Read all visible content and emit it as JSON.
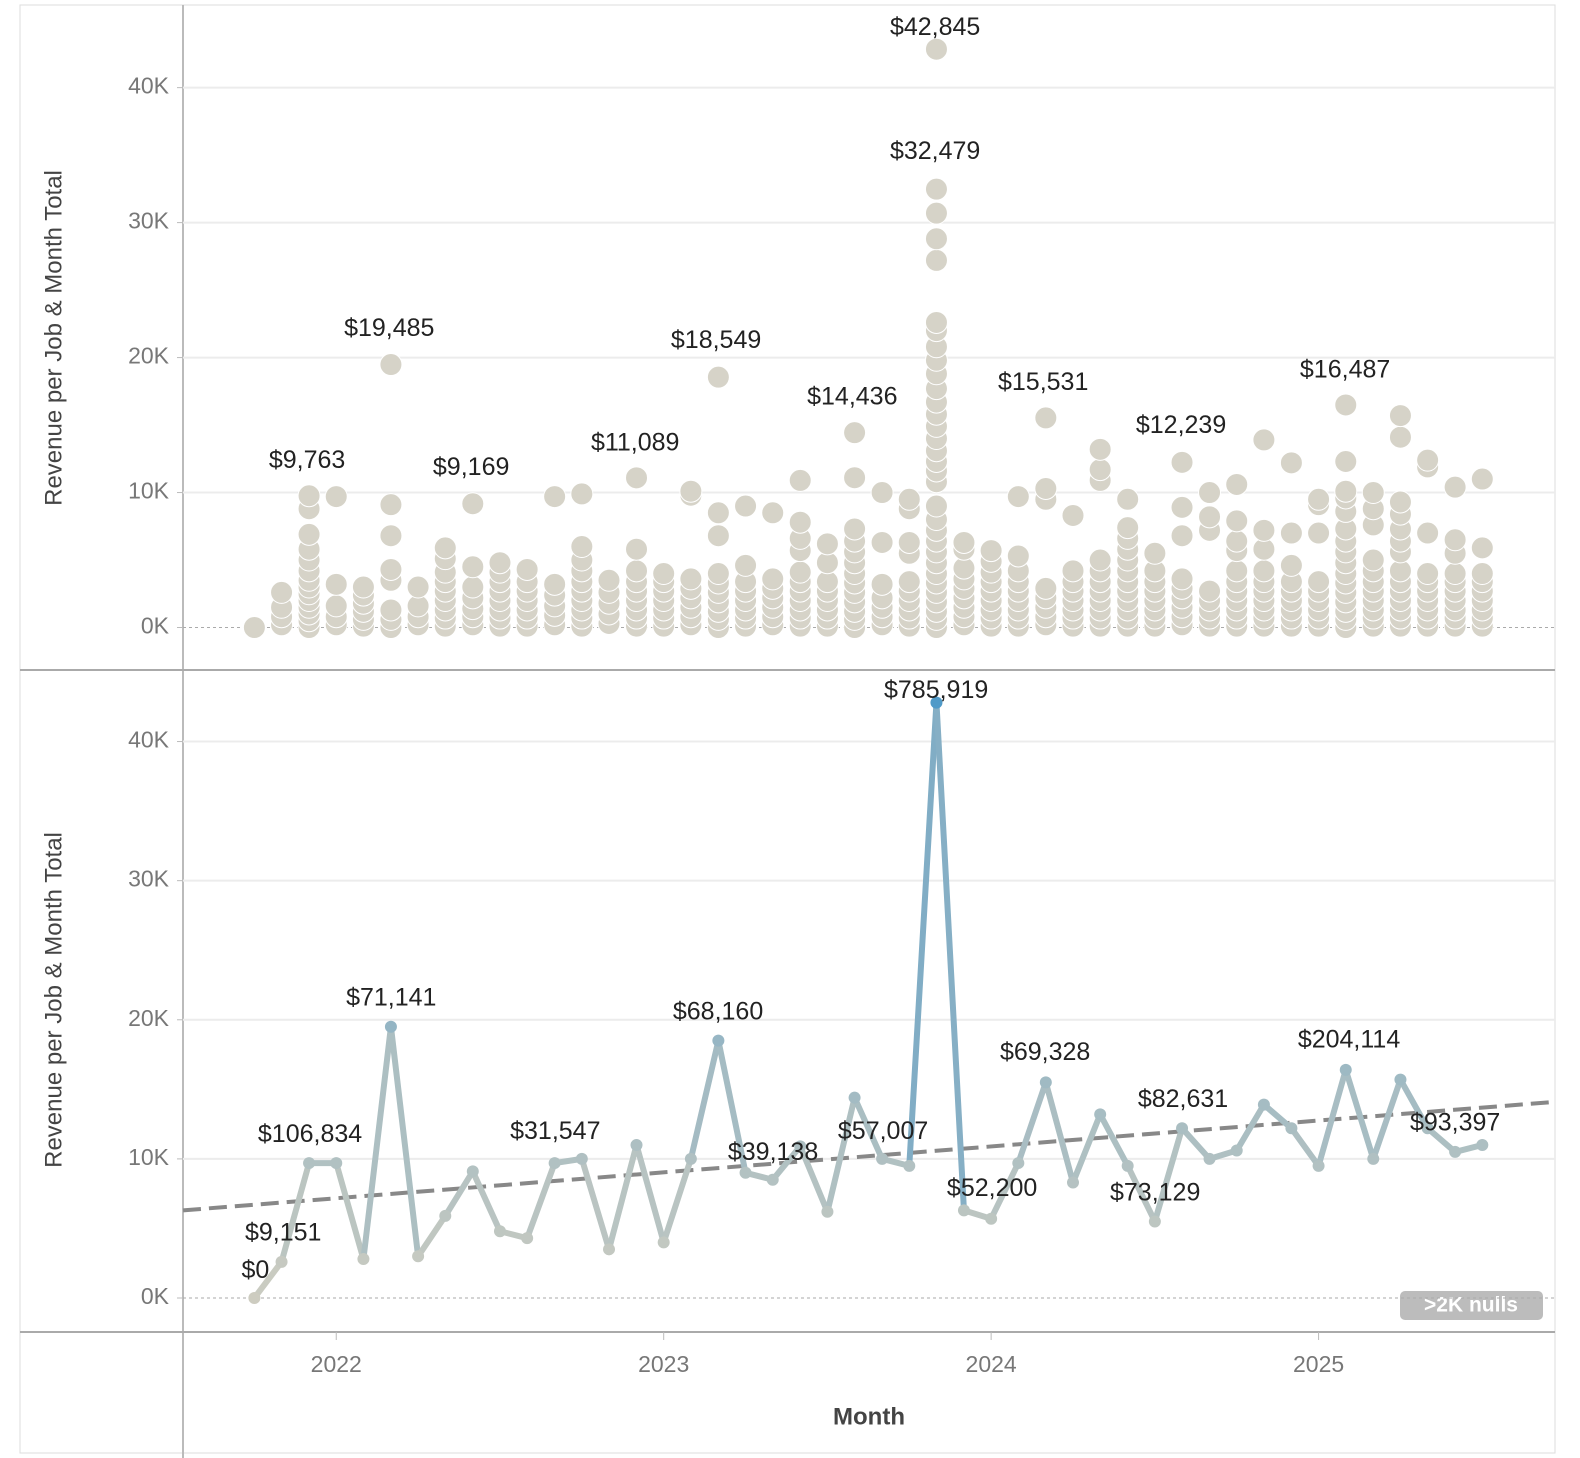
{
  "chart_data": [
    {
      "type": "strip",
      "y_label": "Revenue per Job & Month Total",
      "color": "#d6d3c8",
      "xlim": [
        2021.532,
        2025.722
      ],
      "x": [
        2021.75,
        2021.833,
        2021.917,
        2022,
        2022.083,
        2022.167,
        2022.25,
        2022.333,
        2022.417,
        2022.5,
        2022.583,
        2022.667,
        2022.75,
        2022.833,
        2022.917,
        2023,
        2023.083,
        2023.167,
        2023.25,
        2023.333,
        2023.417,
        2023.5,
        2023.583,
        2023.667,
        2023.75,
        2023.833,
        2023.917,
        2024,
        2024.083,
        2024.167,
        2024.25,
        2024.333,
        2024.417,
        2024.5,
        2024.583,
        2024.667,
        2024.75,
        2024.833,
        2024.917,
        2025,
        2025.083,
        2025.167,
        2025.25,
        2025.333,
        2025.417,
        2025.5
      ],
      "ylim": [
        -3000,
        45900
      ],
      "yticks": [
        {
          "value": 0,
          "label": "0K"
        },
        {
          "value": 10000,
          "label": "10K"
        },
        {
          "value": 20000,
          "label": "20K"
        },
        {
          "value": 30000,
          "label": "30K"
        },
        {
          "value": 40000,
          "label": "40K"
        }
      ],
      "grid": true,
      "series": [
        {
          "values": [
            [
              0
            ],
            [
              200,
              800,
              1500,
              2600
            ],
            [
              0,
              500,
              1000,
              1500,
              2000,
              2500,
              3000,
              3500,
              4200,
              5000,
              5800,
              6900,
              8800,
              9763
            ],
            [
              200,
              800,
              1600,
              3200,
              9700
            ],
            [
              100,
              600,
              1200,
              1800,
              2400,
              3000
            ],
            [
              0,
              600,
              1300,
              3500,
              4300,
              6800,
              9100,
              19485
            ],
            [
              200,
              800,
              1600,
              3000
            ],
            [
              100,
              700,
              1300,
              2000,
              2700,
              3400,
              4100,
              5100,
              5900
            ],
            [
              200,
              800,
              1400,
              2200,
              3000,
              4500,
              9169
            ],
            [
              100,
              700,
              1300,
              2000,
              2700,
              3400,
              4100,
              4800
            ],
            [
              100,
              700,
              1300,
              2000,
              2700,
              3400,
              4300
            ],
            [
              200,
              900,
              1600,
              2400,
              3200,
              9700
            ],
            [
              100,
              700,
              1300,
              2000,
              2700,
              3400,
              4200,
              5000,
              6000,
              9900
            ],
            [
              300,
              1000,
              1800,
              2600,
              3500
            ],
            [
              100,
              700,
              1300,
              2000,
              2700,
              3400,
              4200,
              5800,
              11089
            ],
            [
              100,
              700,
              1300,
              2000,
              2700,
              3400,
              4000
            ],
            [
              200,
              800,
              1500,
              2200,
              2900,
              3600,
              9800,
              10100
            ],
            [
              0,
              600,
              1200,
              1900,
              2600,
              3300,
              4000,
              6800,
              8500,
              18549
            ],
            [
              100,
              700,
              1300,
              2000,
              2700,
              3400,
              4600,
              9000
            ],
            [
              200,
              800,
              1500,
              2200,
              2900,
              3600,
              8500
            ],
            [
              100,
              700,
              1300,
              2000,
              2700,
              3400,
              4100,
              5700,
              6600,
              7800,
              10900
            ],
            [
              100,
              700,
              1300,
              2000,
              2700,
              3400,
              4800,
              6200
            ],
            [
              0,
              600,
              1200,
              1900,
              2600,
              3300,
              4000,
              4800,
              5600,
              6400,
              7300,
              11100,
              14436
            ],
            [
              200,
              800,
              1500,
              2200,
              3200,
              6300,
              10000
            ],
            [
              100,
              700,
              1300,
              2000,
              2700,
              3400,
              5500,
              6300,
              8800,
              9500
            ],
            [
              0,
              600,
              1200,
              1900,
              2600,
              3300,
              4000,
              4800,
              5600,
              6400,
              7200,
              8000,
              9000,
              10800,
              11600,
              12300,
              13100,
              14000,
              14900,
              15800,
              16700,
              17700,
              18800,
              19800,
              20800,
              22000,
              22600,
              27200,
              28800,
              30700,
              32479,
              42845
            ],
            [
              200,
              800,
              1500,
              2200,
              2900,
              3600,
              4400,
              5800,
              6300
            ],
            [
              100,
              700,
              1300,
              2000,
              2700,
              3400,
              4100,
              4900,
              5700
            ],
            [
              100,
              700,
              1300,
              2000,
              2700,
              3400,
              4200,
              5300,
              9700
            ],
            [
              200,
              800,
              1500,
              2200,
              2900,
              9500,
              10300,
              15531
            ],
            [
              100,
              700,
              1300,
              2000,
              2700,
              3400,
              4200,
              8300
            ],
            [
              100,
              700,
              1300,
              2000,
              2700,
              3400,
              4200,
              5000,
              10900,
              11700,
              13200
            ],
            [
              100,
              700,
              1300,
              2000,
              2700,
              3400,
              4200,
              5000,
              5800,
              6600,
              7400,
              9500
            ],
            [
              100,
              700,
              1300,
              2000,
              2700,
              3400,
              4200,
              5500
            ],
            [
              200,
              800,
              1500,
              2200,
              2900,
              3600,
              6800,
              8900,
              12239
            ],
            [
              100,
              700,
              1300,
              2000,
              2700,
              7200,
              8200,
              10000
            ],
            [
              100,
              700,
              1300,
              2000,
              2700,
              3400,
              4200,
              5700,
              6400,
              7900,
              10600
            ],
            [
              100,
              700,
              1300,
              2000,
              2700,
              3400,
              4200,
              5800,
              7200,
              13900
            ],
            [
              100,
              700,
              1300,
              2000,
              2700,
              3400,
              4600,
              7000,
              12200
            ],
            [
              100,
              700,
              1300,
              2000,
              2700,
              3400,
              7000,
              9100,
              9500
            ],
            [
              0,
              600,
              1200,
              1900,
              2600,
              3300,
              4000,
              4800,
              5600,
              6400,
              7300,
              8600,
              9600,
              10100,
              12300,
              16487
            ],
            [
              100,
              700,
              1300,
              2000,
              2700,
              3400,
              4200,
              5000,
              7600,
              8800,
              10000
            ],
            [
              100,
              700,
              1300,
              2000,
              2700,
              3400,
              4200,
              5600,
              6400,
              7300,
              8400,
              9300,
              14100,
              15700
            ],
            [
              100,
              700,
              1300,
              2000,
              2700,
              3400,
              4000,
              7000,
              11900,
              12400
            ],
            [
              100,
              700,
              1300,
              2000,
              2700,
              3400,
              4000,
              5500,
              6500,
              10400
            ],
            [
              100,
              700,
              1300,
              2000,
              2700,
              3400,
              4000,
              5900,
              11000
            ]
          ]
        }
      ],
      "annotations": [
        {
          "x": 2023.829,
          "y": 44400,
          "text": "$42,845"
        },
        {
          "x": 2023.829,
          "y": 35200,
          "text": "$32,479"
        },
        {
          "x": 2022.162,
          "y": 22100,
          "text": "$19,485"
        },
        {
          "x": 2021.911,
          "y": 12300,
          "text": "$9,763"
        },
        {
          "x": 2022.412,
          "y": 11800,
          "text": "$9,169"
        },
        {
          "x": 2022.913,
          "y": 13600,
          "text": "$11,089"
        },
        {
          "x": 2023.16,
          "y": 21200,
          "text": "$18,549"
        },
        {
          "x": 2023.576,
          "y": 17000,
          "text": "$14,436"
        },
        {
          "x": 2024.159,
          "y": 18100,
          "text": "$15,531"
        },
        {
          "x": 2024.58,
          "y": 14900,
          "text": "$12,239"
        },
        {
          "x": 2025.081,
          "y": 19000,
          "text": "$16,487"
        }
      ]
    },
    {
      "type": "line",
      "y_label": "Revenue per Job & Month Total",
      "x_label": "Month",
      "xlim": [
        2021.532,
        2025.722
      ],
      "xticks": [
        2022,
        2023,
        2024,
        2025
      ],
      "x": [
        2021.75,
        2021.833,
        2021.917,
        2022,
        2022.083,
        2022.167,
        2022.25,
        2022.333,
        2022.417,
        2022.5,
        2022.583,
        2022.667,
        2022.75,
        2022.833,
        2022.917,
        2023,
        2023.083,
        2023.167,
        2023.25,
        2023.333,
        2023.417,
        2023.5,
        2023.583,
        2023.667,
        2023.75,
        2023.833,
        2023.917,
        2024,
        2024.083,
        2024.167,
        2024.25,
        2024.333,
        2024.417,
        2024.5,
        2024.583,
        2024.667,
        2024.75,
        2024.833,
        2024.917,
        2025,
        2025.083,
        2025.167,
        2025.25,
        2025.333,
        2025.417,
        2025.5
      ],
      "ylim": [
        -2300,
        45000
      ],
      "yticks": [
        {
          "value": 0,
          "label": "0K"
        },
        {
          "value": 10000,
          "label": "10K"
        },
        {
          "value": 20000,
          "label": "20K"
        },
        {
          "value": 30000,
          "label": "30K"
        },
        {
          "value": 40000,
          "label": "40K"
        }
      ],
      "grid": true,
      "color_scale": [
        "#d4cfc0",
        "#4a97c8"
      ],
      "series": [
        {
          "values": [
            0,
            2600,
            9700,
            9700,
            2800,
            19500,
            3000,
            5900,
            9100,
            4800,
            4300,
            9700,
            10000,
            3500,
            11000,
            4000,
            10000,
            18500,
            9000,
            8500,
            10900,
            6200,
            14400,
            10000,
            9500,
            42800,
            6300,
            5700,
            9700,
            15500,
            8300,
            13200,
            9500,
            5500,
            12200,
            10000,
            10600,
            13900,
            12200,
            9500,
            16400,
            10000,
            15700,
            12200,
            10500,
            11000
          ]
        }
      ],
      "trend": {
        "color": "#888888",
        "x": [
          2021.532,
          2025.722
        ],
        "values": [
          6300,
          14100
        ]
      },
      "annotations": [
        {
          "x": 2021.753,
          "y": 1900,
          "text": "$0"
        },
        {
          "x": 2021.838,
          "y": 4600,
          "text": "$9,151"
        },
        {
          "x": 2021.92,
          "y": 11700,
          "text": "$106,834"
        },
        {
          "x": 2022.168,
          "y": 21500,
          "text": "$71,141"
        },
        {
          "x": 2022.669,
          "y": 11900,
          "text": "$31,547"
        },
        {
          "x": 2023.166,
          "y": 20500,
          "text": "$68,160"
        },
        {
          "x": 2023.334,
          "y": 10400,
          "text": "$39,138"
        },
        {
          "x": 2023.67,
          "y": 11900,
          "text": "$57,007"
        },
        {
          "x": 2023.832,
          "y": 43600,
          "text": "$785,919"
        },
        {
          "x": 2024.003,
          "y": 7800,
          "text": "$52,200"
        },
        {
          "x": 2024.165,
          "y": 17600,
          "text": "$69,328"
        },
        {
          "x": 2024.501,
          "y": 7500,
          "text": "$73,129"
        },
        {
          "x": 2024.586,
          "y": 14200,
          "text": "$82,631"
        },
        {
          "x": 2025.093,
          "y": 18500,
          "text": "$204,114"
        },
        {
          "x": 2025.417,
          "y": 12500,
          "text": "$93,397"
        }
      ],
      "nulls_badge": ">2K nulls"
    }
  ]
}
